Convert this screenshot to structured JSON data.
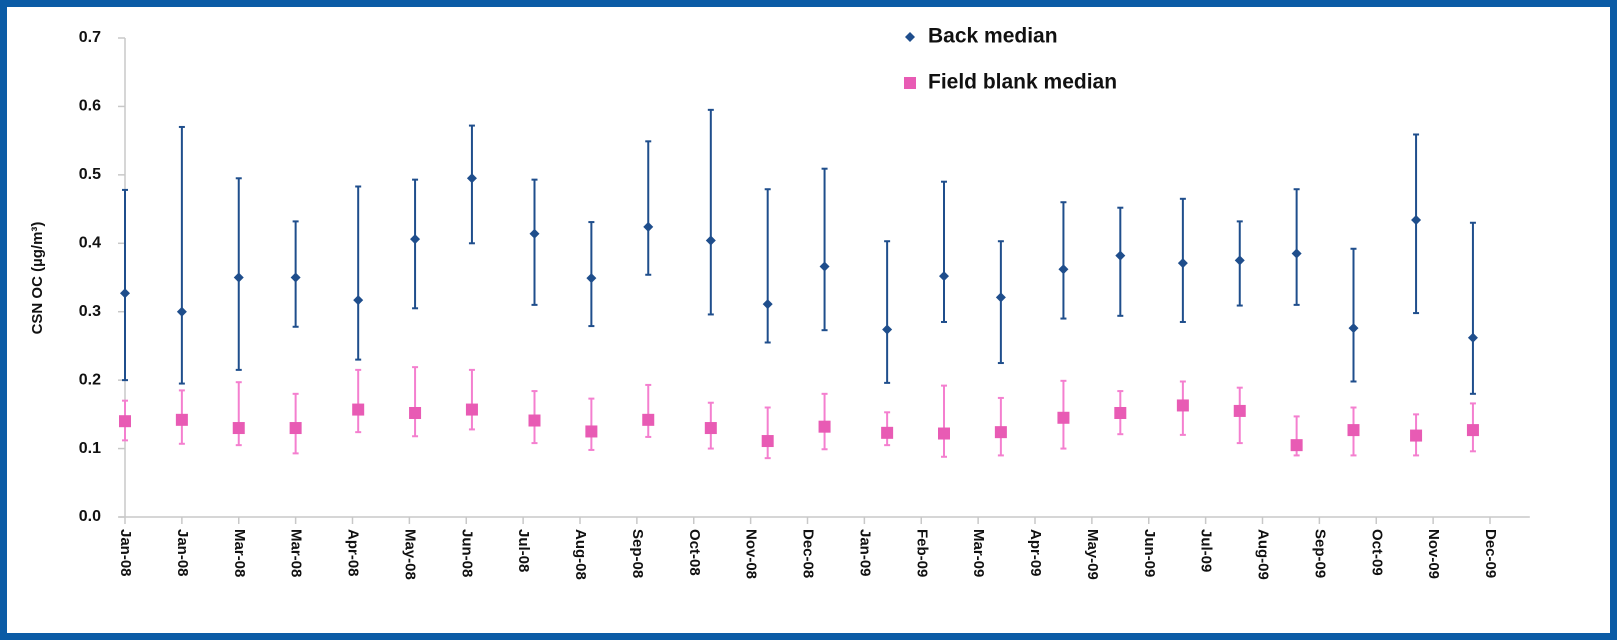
{
  "chart_data": {
    "type": "errorbar",
    "y_label": "CSN OC (µg/m³)",
    "xlim": [
      -0.1,
      24.7
    ],
    "xticks": [
      {
        "value": 0,
        "label": "Jan-08"
      },
      {
        "value": 1,
        "label": "Jan-08"
      },
      {
        "value": 2,
        "label": "Mar-08"
      },
      {
        "value": 3,
        "label": "Mar-08"
      },
      {
        "value": 4,
        "label": "Apr-08"
      },
      {
        "value": 5,
        "label": "May-08"
      },
      {
        "value": 6,
        "label": "Jun-08"
      },
      {
        "value": 7,
        "label": "Jul-08"
      },
      {
        "value": 8,
        "label": "Aug-08"
      },
      {
        "value": 9,
        "label": "Sep-08"
      },
      {
        "value": 10,
        "label": "Oct-08"
      },
      {
        "value": 11,
        "label": "Nov-08"
      },
      {
        "value": 12,
        "label": "Dec-08"
      },
      {
        "value": 13,
        "label": "Jan-09"
      },
      {
        "value": 14,
        "label": "Feb-09"
      },
      {
        "value": 15,
        "label": "Mar-09"
      },
      {
        "value": 16,
        "label": "Apr-09"
      },
      {
        "value": 17,
        "label": "May-09"
      },
      {
        "value": 18,
        "label": "Jun-09"
      },
      {
        "value": 19,
        "label": "Jul-09"
      },
      {
        "value": 20,
        "label": "Aug-09"
      },
      {
        "value": 21,
        "label": "Sep-09"
      },
      {
        "value": 22,
        "label": "Oct-09"
      },
      {
        "value": 23,
        "label": "Nov-09"
      },
      {
        "value": 24,
        "label": "Dec-09"
      }
    ],
    "ylim": [
      0,
      0.7
    ],
    "yticks": [
      {
        "value": 0,
        "label": "0.0"
      },
      0.1,
      0.2,
      0.3,
      0.4,
      0.5,
      0.6,
      0.7
    ],
    "x": [
      0,
      1,
      2,
      3,
      4.1,
      5.1,
      6.1,
      7.2,
      8.2,
      9.2,
      10.3,
      11.3,
      12.3,
      13.4,
      14.4,
      15.4,
      16.5,
      17.5,
      18.6,
      19.6,
      20.6,
      21.6,
      22.7,
      23.7
    ],
    "series": [
      {
        "name": "Back median",
        "color": "#1f4e8c",
        "bar_color": "#1f4e8c",
        "marker": "diamond",
        "values": [
          0.327,
          0.3,
          0.35,
          0.35,
          0.317,
          0.406,
          0.495,
          0.414,
          0.349,
          0.424,
          0.404,
          0.311,
          0.366,
          0.274,
          0.352,
          0.321,
          0.362,
          0.382,
          0.371,
          0.375,
          0.385,
          0.276,
          0.434,
          0.262
        ],
        "low": [
          0.2,
          0.195,
          0.215,
          0.278,
          0.23,
          0.305,
          0.4,
          0.31,
          0.279,
          0.354,
          0.296,
          0.255,
          0.273,
          0.196,
          0.285,
          0.225,
          0.29,
          0.294,
          0.285,
          0.309,
          0.31,
          0.198,
          0.298,
          0.18
        ],
        "high": [
          0.478,
          0.57,
          0.495,
          0.432,
          0.483,
          0.493,
          0.572,
          0.493,
          0.431,
          0.549,
          0.595,
          0.479,
          0.509,
          0.403,
          0.49,
          0.403,
          0.46,
          0.452,
          0.465,
          0.432,
          0.479,
          0.392,
          0.559,
          0.43
        ]
      },
      {
        "name": "Field blank median",
        "color": "#e85bb4",
        "bar_color": "#f47fcf",
        "marker": "square",
        "values": [
          0.14,
          0.142,
          0.13,
          0.13,
          0.157,
          0.152,
          0.157,
          0.141,
          0.125,
          0.142,
          0.13,
          0.111,
          0.132,
          0.123,
          0.122,
          0.124,
          0.145,
          0.152,
          0.163,
          0.155,
          0.105,
          0.127,
          0.119,
          0.127
        ],
        "low": [
          0.112,
          0.107,
          0.105,
          0.093,
          0.124,
          0.118,
          0.128,
          0.108,
          0.098,
          0.117,
          0.1,
          0.086,
          0.099,
          0.105,
          0.088,
          0.09,
          0.1,
          0.121,
          0.12,
          0.108,
          0.09,
          0.09,
          0.09,
          0.096
        ],
        "high": [
          0.17,
          0.185,
          0.197,
          0.18,
          0.215,
          0.219,
          0.215,
          0.184,
          0.173,
          0.193,
          0.167,
          0.16,
          0.18,
          0.153,
          0.192,
          0.174,
          0.199,
          0.184,
          0.198,
          0.189,
          0.147,
          0.16,
          0.15,
          0.166
        ]
      }
    ]
  }
}
